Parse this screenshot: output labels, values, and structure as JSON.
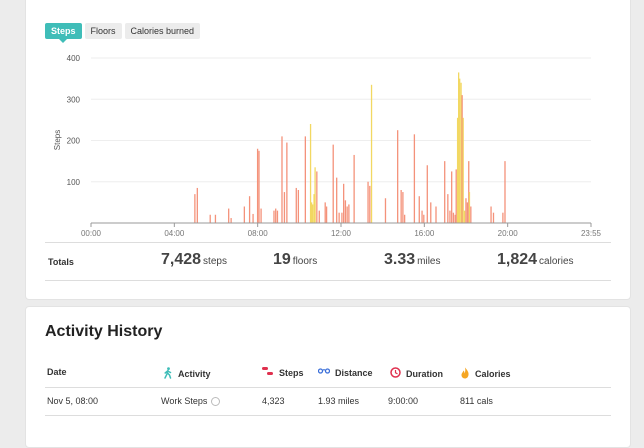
{
  "tabs": [
    {
      "label": "Steps",
      "active": true
    },
    {
      "label": "Floors",
      "active": false
    },
    {
      "label": "Calories burned",
      "active": false
    }
  ],
  "chart_data": {
    "type": "bar",
    "ylabel": "Steps",
    "ylim": [
      0,
      400
    ],
    "yticks": [
      100,
      200,
      300,
      400
    ],
    "xlim_minutes": [
      0,
      1435
    ],
    "xticks": [
      "00:00",
      "04:00",
      "08:00",
      "12:00",
      "16:00",
      "20:00",
      "23:55"
    ],
    "colors": {
      "normal": "#f4927a",
      "highlight": "#f2d862"
    },
    "bars": [
      {
        "t": 298,
        "v": 70
      },
      {
        "t": 305,
        "v": 85
      },
      {
        "t": 342,
        "v": 20
      },
      {
        "t": 357,
        "v": 20
      },
      {
        "t": 395,
        "v": 35
      },
      {
        "t": 402,
        "v": 12
      },
      {
        "t": 440,
        "v": 40
      },
      {
        "t": 455,
        "v": 65
      },
      {
        "t": 465,
        "v": 22
      },
      {
        "t": 478,
        "v": 180
      },
      {
        "t": 482,
        "v": 175
      },
      {
        "t": 488,
        "v": 35
      },
      {
        "t": 525,
        "v": 30
      },
      {
        "t": 530,
        "v": 35
      },
      {
        "t": 535,
        "v": 30
      },
      {
        "t": 548,
        "v": 210
      },
      {
        "t": 555,
        "v": 75
      },
      {
        "t": 562,
        "v": 195
      },
      {
        "t": 589,
        "v": 85
      },
      {
        "t": 595,
        "v": 80
      },
      {
        "t": 615,
        "v": 210
      },
      {
        "t": 630,
        "v": 240,
        "hl": true
      },
      {
        "t": 633,
        "v": 50,
        "hl": true
      },
      {
        "t": 636,
        "v": 45,
        "hl": true
      },
      {
        "t": 640,
        "v": 70,
        "hl": true
      },
      {
        "t": 643,
        "v": 135,
        "hl": true
      },
      {
        "t": 648,
        "v": 125
      },
      {
        "t": 655,
        "v": 30
      },
      {
        "t": 672,
        "v": 50
      },
      {
        "t": 676,
        "v": 40
      },
      {
        "t": 695,
        "v": 190
      },
      {
        "t": 705,
        "v": 110
      },
      {
        "t": 712,
        "v": 25
      },
      {
        "t": 720,
        "v": 25
      },
      {
        "t": 725,
        "v": 95
      },
      {
        "t": 730,
        "v": 55
      },
      {
        "t": 735,
        "v": 40
      },
      {
        "t": 740,
        "v": 45
      },
      {
        "t": 755,
        "v": 165
      },
      {
        "t": 795,
        "v": 100
      },
      {
        "t": 800,
        "v": 90
      },
      {
        "t": 805,
        "v": 335,
        "hl": true
      },
      {
        "t": 845,
        "v": 60
      },
      {
        "t": 880,
        "v": 225
      },
      {
        "t": 890,
        "v": 80
      },
      {
        "t": 895,
        "v": 75
      },
      {
        "t": 900,
        "v": 20
      },
      {
        "t": 928,
        "v": 215
      },
      {
        "t": 942,
        "v": 65
      },
      {
        "t": 950,
        "v": 30
      },
      {
        "t": 955,
        "v": 20
      },
      {
        "t": 965,
        "v": 140
      },
      {
        "t": 975,
        "v": 50
      },
      {
        "t": 990,
        "v": 40
      },
      {
        "t": 1015,
        "v": 150
      },
      {
        "t": 1024,
        "v": 70
      },
      {
        "t": 1030,
        "v": 30
      },
      {
        "t": 1035,
        "v": 125
      },
      {
        "t": 1040,
        "v": 25
      },
      {
        "t": 1045,
        "v": 20
      },
      {
        "t": 1048,
        "v": 130
      },
      {
        "t": 1052,
        "v": 255,
        "hl": true
      },
      {
        "t": 1055,
        "v": 365,
        "hl": true
      },
      {
        "t": 1058,
        "v": 350,
        "hl": true
      },
      {
        "t": 1062,
        "v": 340,
        "hl": true
      },
      {
        "t": 1065,
        "v": 310
      },
      {
        "t": 1068,
        "v": 255,
        "hl": true
      },
      {
        "t": 1072,
        "v": 30,
        "hl": true
      },
      {
        "t": 1076,
        "v": 60
      },
      {
        "t": 1080,
        "v": 50
      },
      {
        "t": 1084,
        "v": 150
      },
      {
        "t": 1086,
        "v": 75,
        "hl": true
      },
      {
        "t": 1090,
        "v": 40
      },
      {
        "t": 1148,
        "v": 40
      },
      {
        "t": 1155,
        "v": 25
      },
      {
        "t": 1182,
        "v": 25
      },
      {
        "t": 1188,
        "v": 150
      }
    ]
  },
  "totals": {
    "label": "Totals",
    "steps": {
      "value": "7,428",
      "unit": "steps"
    },
    "floors": {
      "value": "19",
      "unit": "floors"
    },
    "distance": {
      "value": "3.33",
      "unit": "miles"
    },
    "calories": {
      "value": "1,824",
      "unit": "calories"
    }
  },
  "history": {
    "title": "Activity History",
    "columns": {
      "date": "Date",
      "activity": "Activity",
      "steps": "Steps",
      "distance": "Distance",
      "duration": "Duration",
      "calories": "Calories"
    },
    "rows": [
      {
        "date": "Nov 5, 08:00",
        "activity": "Work Steps",
        "steps": "4,323",
        "distance": "1.93 miles",
        "duration": "9:00:00",
        "calories": "811 cals"
      }
    ]
  },
  "icon_colors": {
    "activity": "#3fbdb8",
    "steps": "#e0304e",
    "distance": "#3b6fd9",
    "duration": "#e0304e",
    "calories": "#f5a623"
  }
}
